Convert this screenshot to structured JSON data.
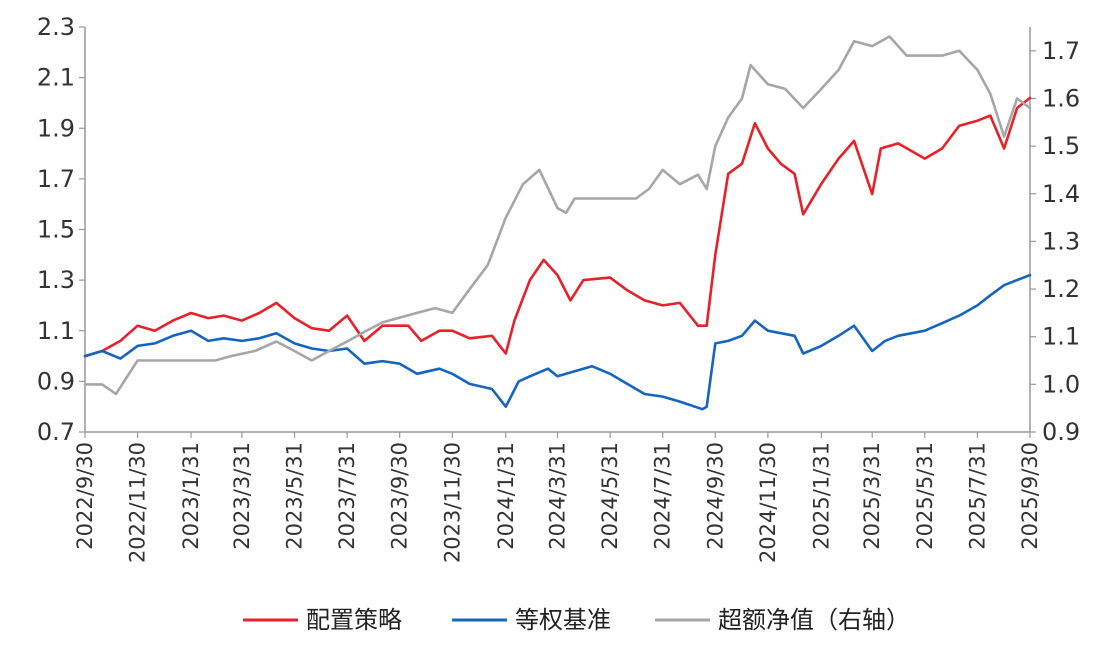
{
  "chart_data": {
    "type": "line",
    "title": "",
    "xlabel": "",
    "ylabel": "",
    "y_left": {
      "min": 0.7,
      "max": 2.3,
      "ticks": [
        "0.7",
        "0.9",
        "1.1",
        "1.3",
        "1.5",
        "1.7",
        "1.9",
        "2.1",
        "2.3"
      ]
    },
    "y_right": {
      "min": 0.9,
      "max": 1.75,
      "ticks": [
        "0.9",
        "1.0",
        "1.1",
        "1.2",
        "1.3",
        "1.4",
        "1.5",
        "1.6",
        "1.7"
      ]
    },
    "x_ticks": [
      "2022/9/30",
      "2022/11/30",
      "2023/1/31",
      "2023/3/31",
      "2023/5/31",
      "2023/7/31",
      "2023/9/30",
      "2023/11/30",
      "2024/1/31",
      "2024/3/31",
      "2024/5/31",
      "2024/7/31",
      "2024/9/30",
      "2024/11/30",
      "2025/1/31",
      "2025/3/31",
      "2025/5/31",
      "2025/7/31",
      "2025/9/30"
    ],
    "grid": false,
    "legend_position": "bottom",
    "series": [
      {
        "name": "配置策略",
        "axis": "left",
        "color": "#e8202a",
        "points": [
          [
            "2022/9/30",
            1.0
          ],
          [
            "2022/10/20",
            1.02
          ],
          [
            "2022/11/10",
            1.06
          ],
          [
            "2022/11/30",
            1.12
          ],
          [
            "2022/12/20",
            1.1
          ],
          [
            "2023/1/10",
            1.14
          ],
          [
            "2023/1/31",
            1.17
          ],
          [
            "2023/2/20",
            1.15
          ],
          [
            "2023/3/10",
            1.16
          ],
          [
            "2023/3/31",
            1.14
          ],
          [
            "2023/4/20",
            1.17
          ],
          [
            "2023/5/10",
            1.21
          ],
          [
            "2023/5/31",
            1.15
          ],
          [
            "2023/6/20",
            1.11
          ],
          [
            "2023/7/10",
            1.1
          ],
          [
            "2023/7/31",
            1.16
          ],
          [
            "2023/8/20",
            1.06
          ],
          [
            "2023/9/10",
            1.12
          ],
          [
            "2023/9/30",
            1.12
          ],
          [
            "2023/10/10",
            1.12
          ],
          [
            "2023/10/25",
            1.06
          ],
          [
            "2023/11/15",
            1.1
          ],
          [
            "2023/11/30",
            1.1
          ],
          [
            "2023/12/20",
            1.07
          ],
          [
            "2024/1/15",
            1.08
          ],
          [
            "2024/1/31",
            1.01
          ],
          [
            "2024/2/10",
            1.14
          ],
          [
            "2024/2/28",
            1.3
          ],
          [
            "2024/3/15",
            1.38
          ],
          [
            "2024/3/31",
            1.32
          ],
          [
            "2024/4/15",
            1.22
          ],
          [
            "2024/4/30",
            1.3
          ],
          [
            "2024/5/31",
            1.31
          ],
          [
            "2024/6/20",
            1.26
          ],
          [
            "2024/7/10",
            1.22
          ],
          [
            "2024/7/31",
            1.2
          ],
          [
            "2024/8/20",
            1.21
          ],
          [
            "2024/9/10",
            1.12
          ],
          [
            "2024/9/20",
            1.12
          ],
          [
            "2024/9/30",
            1.4
          ],
          [
            "2024/10/15",
            1.72
          ],
          [
            "2024/10/31",
            1.76
          ],
          [
            "2024/11/15",
            1.92
          ],
          [
            "2024/11/30",
            1.82
          ],
          [
            "2024/12/15",
            1.76
          ],
          [
            "2024/12/31",
            1.72
          ],
          [
            "2025/1/10",
            1.56
          ],
          [
            "2025/1/31",
            1.68
          ],
          [
            "2025/2/20",
            1.78
          ],
          [
            "2025/3/10",
            1.85
          ],
          [
            "2025/3/31",
            1.64
          ],
          [
            "2025/4/10",
            1.82
          ],
          [
            "2025/4/30",
            1.84
          ],
          [
            "2025/5/31",
            1.78
          ],
          [
            "2025/6/20",
            1.82
          ],
          [
            "2025/7/10",
            1.91
          ],
          [
            "2025/7/31",
            1.93
          ],
          [
            "2025/8/15",
            1.95
          ],
          [
            "2025/8/31",
            1.82
          ],
          [
            "2025/9/15",
            1.98
          ],
          [
            "2025/9/30",
            2.02
          ]
        ]
      },
      {
        "name": "等权基准",
        "axis": "left",
        "color": "#1565c0",
        "points": [
          [
            "2022/9/30",
            1.0
          ],
          [
            "2022/10/20",
            1.02
          ],
          [
            "2022/11/10",
            0.99
          ],
          [
            "2022/11/30",
            1.04
          ],
          [
            "2022/12/20",
            1.05
          ],
          [
            "2023/1/10",
            1.08
          ],
          [
            "2023/1/31",
            1.1
          ],
          [
            "2023/2/20",
            1.06
          ],
          [
            "2023/3/10",
            1.07
          ],
          [
            "2023/3/31",
            1.06
          ],
          [
            "2023/4/20",
            1.07
          ],
          [
            "2023/5/10",
            1.09
          ],
          [
            "2023/5/31",
            1.05
          ],
          [
            "2023/6/20",
            1.03
          ],
          [
            "2023/7/10",
            1.02
          ],
          [
            "2023/7/31",
            1.03
          ],
          [
            "2023/8/20",
            0.97
          ],
          [
            "2023/9/10",
            0.98
          ],
          [
            "2023/9/30",
            0.97
          ],
          [
            "2023/10/20",
            0.93
          ],
          [
            "2023/11/15",
            0.95
          ],
          [
            "2023/11/30",
            0.93
          ],
          [
            "2023/12/20",
            0.89
          ],
          [
            "2024/1/15",
            0.87
          ],
          [
            "2024/1/31",
            0.8
          ],
          [
            "2024/2/15",
            0.9
          ],
          [
            "2024/2/28",
            0.92
          ],
          [
            "2024/3/20",
            0.95
          ],
          [
            "2024/3/31",
            0.92
          ],
          [
            "2024/4/20",
            0.94
          ],
          [
            "2024/5/10",
            0.96
          ],
          [
            "2024/5/31",
            0.93
          ],
          [
            "2024/6/20",
            0.89
          ],
          [
            "2024/7/10",
            0.85
          ],
          [
            "2024/7/31",
            0.84
          ],
          [
            "2024/8/20",
            0.82
          ],
          [
            "2024/9/15",
            0.79
          ],
          [
            "2024/9/20",
            0.8
          ],
          [
            "2024/9/30",
            1.05
          ],
          [
            "2024/10/15",
            1.06
          ],
          [
            "2024/10/31",
            1.08
          ],
          [
            "2024/11/15",
            1.14
          ],
          [
            "2024/11/30",
            1.1
          ],
          [
            "2024/12/31",
            1.08
          ],
          [
            "2025/1/10",
            1.01
          ],
          [
            "2025/1/31",
            1.04
          ],
          [
            "2025/2/20",
            1.08
          ],
          [
            "2025/3/10",
            1.12
          ],
          [
            "2025/3/31",
            1.02
          ],
          [
            "2025/4/15",
            1.06
          ],
          [
            "2025/4/30",
            1.08
          ],
          [
            "2025/5/31",
            1.1
          ],
          [
            "2025/6/20",
            1.13
          ],
          [
            "2025/7/10",
            1.16
          ],
          [
            "2025/7/31",
            1.2
          ],
          [
            "2025/8/15",
            1.24
          ],
          [
            "2025/8/31",
            1.28
          ],
          [
            "2025/9/15",
            1.3
          ],
          [
            "2025/9/30",
            1.32
          ]
        ]
      },
      {
        "name": "超额净值（右轴）",
        "axis": "right",
        "color": "#a6a6a6",
        "points": [
          [
            "2022/9/30",
            1.0
          ],
          [
            "2022/10/20",
            1.0
          ],
          [
            "2022/11/5",
            0.98
          ],
          [
            "2022/11/30",
            1.05
          ],
          [
            "2022/12/20",
            1.05
          ],
          [
            "2023/1/31",
            1.05
          ],
          [
            "2023/2/28",
            1.05
          ],
          [
            "2023/3/20",
            1.06
          ],
          [
            "2023/4/15",
            1.07
          ],
          [
            "2023/5/10",
            1.09
          ],
          [
            "2023/5/31",
            1.07
          ],
          [
            "2023/6/20",
            1.05
          ],
          [
            "2023/7/10",
            1.07
          ],
          [
            "2023/7/31",
            1.09
          ],
          [
            "2023/8/20",
            1.11
          ],
          [
            "2023/9/10",
            1.13
          ],
          [
            "2023/9/30",
            1.14
          ],
          [
            "2023/10/20",
            1.15
          ],
          [
            "2023/11/10",
            1.16
          ],
          [
            "2023/11/30",
            1.15
          ],
          [
            "2023/12/20",
            1.2
          ],
          [
            "2024/1/10",
            1.25
          ],
          [
            "2024/1/31",
            1.35
          ],
          [
            "2024/2/20",
            1.42
          ],
          [
            "2024/3/10",
            1.45
          ],
          [
            "2024/3/31",
            1.37
          ],
          [
            "2024/4/10",
            1.36
          ],
          [
            "2024/4/20",
            1.39
          ],
          [
            "2024/5/31",
            1.39
          ],
          [
            "2024/6/30",
            1.39
          ],
          [
            "2024/7/15",
            1.41
          ],
          [
            "2024/7/31",
            1.45
          ],
          [
            "2024/8/20",
            1.42
          ],
          [
            "2024/9/10",
            1.44
          ],
          [
            "2024/9/20",
            1.41
          ],
          [
            "2024/9/30",
            1.5
          ],
          [
            "2024/10/15",
            1.56
          ],
          [
            "2024/10/31",
            1.6
          ],
          [
            "2024/11/10",
            1.67
          ],
          [
            "2024/11/30",
            1.63
          ],
          [
            "2024/12/20",
            1.62
          ],
          [
            "2025/1/10",
            1.58
          ],
          [
            "2025/1/31",
            1.62
          ],
          [
            "2025/2/20",
            1.66
          ],
          [
            "2025/3/10",
            1.72
          ],
          [
            "2025/3/31",
            1.71
          ],
          [
            "2025/4/20",
            1.73
          ],
          [
            "2025/5/10",
            1.69
          ],
          [
            "2025/5/31",
            1.69
          ],
          [
            "2025/6/20",
            1.69
          ],
          [
            "2025/7/10",
            1.7
          ],
          [
            "2025/7/31",
            1.66
          ],
          [
            "2025/8/15",
            1.61
          ],
          [
            "2025/8/31",
            1.52
          ],
          [
            "2025/9/15",
            1.6
          ],
          [
            "2025/9/30",
            1.58
          ]
        ]
      }
    ]
  }
}
